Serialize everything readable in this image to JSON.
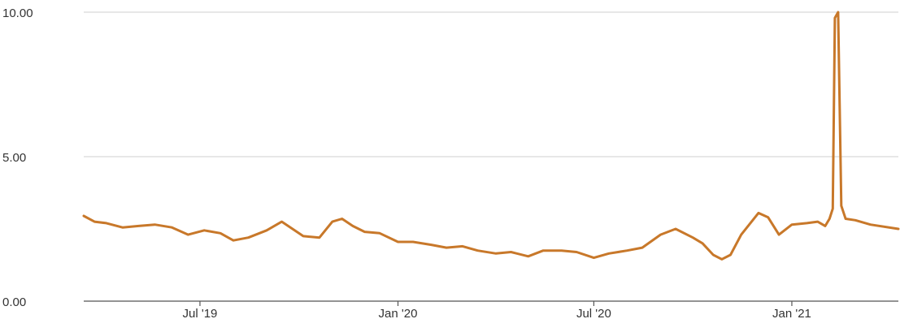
{
  "chart_data": {
    "type": "line",
    "title": "",
    "xlabel": "",
    "ylabel": "",
    "ylim": [
      0,
      10
    ],
    "xlim": [
      "2019-03-15",
      "2021-04-10"
    ],
    "y_ticks": [
      {
        "value": 0,
        "label": "0.00"
      },
      {
        "value": 5,
        "label": "5.00"
      },
      {
        "value": 10,
        "label": "10.00"
      }
    ],
    "x_ticks": [
      {
        "date": "2019-07-01",
        "label": "Jul '19"
      },
      {
        "date": "2020-01-01",
        "label": "Jan '20"
      },
      {
        "date": "2020-07-01",
        "label": "Jul '20"
      },
      {
        "date": "2021-01-01",
        "label": "Jan '21"
      }
    ],
    "grid": "horizontal",
    "legend": "none",
    "colors": {
      "line": "#c8782a",
      "grid": "#cfcfcf",
      "axis": "#555555"
    },
    "series": [
      {
        "x": [
          "2019-03-15",
          "2019-03-25",
          "2019-04-05",
          "2019-04-20",
          "2019-05-05",
          "2019-05-20",
          "2019-06-05",
          "2019-06-20",
          "2019-07-05",
          "2019-07-20",
          "2019-08-01",
          "2019-08-15",
          "2019-09-01",
          "2019-09-15",
          "2019-09-25",
          "2019-10-05",
          "2019-10-20",
          "2019-11-01",
          "2019-11-10",
          "2019-11-20",
          "2019-12-01",
          "2019-12-15",
          "2020-01-01",
          "2020-01-15",
          "2020-02-01",
          "2020-02-15",
          "2020-03-01",
          "2020-03-15",
          "2020-04-01",
          "2020-04-15",
          "2020-05-01",
          "2020-05-15",
          "2020-06-01",
          "2020-06-15",
          "2020-07-01",
          "2020-07-15",
          "2020-08-01",
          "2020-08-15",
          "2020-09-01",
          "2020-09-15",
          "2020-10-01",
          "2020-10-10",
          "2020-10-20",
          "2020-10-28",
          "2020-11-05",
          "2020-11-15",
          "2020-12-01",
          "2020-12-10",
          "2020-12-20",
          "2021-01-01",
          "2021-01-15",
          "2021-01-25",
          "2021-02-01",
          "2021-02-05",
          "2021-02-08",
          "2021-02-10",
          "2021-02-13",
          "2021-02-16",
          "2021-02-20",
          "2021-03-01",
          "2021-03-15",
          "2021-04-10"
        ],
        "values": [
          2.95,
          2.75,
          2.7,
          2.55,
          2.6,
          2.65,
          2.55,
          2.3,
          2.45,
          2.35,
          2.1,
          2.2,
          2.45,
          2.75,
          2.5,
          2.25,
          2.2,
          2.75,
          2.85,
          2.6,
          2.4,
          2.35,
          2.05,
          2.05,
          1.95,
          1.85,
          1.9,
          1.75,
          1.65,
          1.7,
          1.55,
          1.75,
          1.75,
          1.7,
          1.5,
          1.65,
          1.75,
          1.85,
          2.3,
          2.5,
          2.2,
          2.0,
          1.6,
          1.45,
          1.6,
          2.3,
          3.05,
          2.9,
          2.3,
          2.65,
          2.7,
          2.75,
          2.6,
          2.85,
          3.2,
          9.8,
          10.0,
          3.3,
          2.85,
          2.8,
          2.65,
          2.5
        ]
      }
    ]
  }
}
